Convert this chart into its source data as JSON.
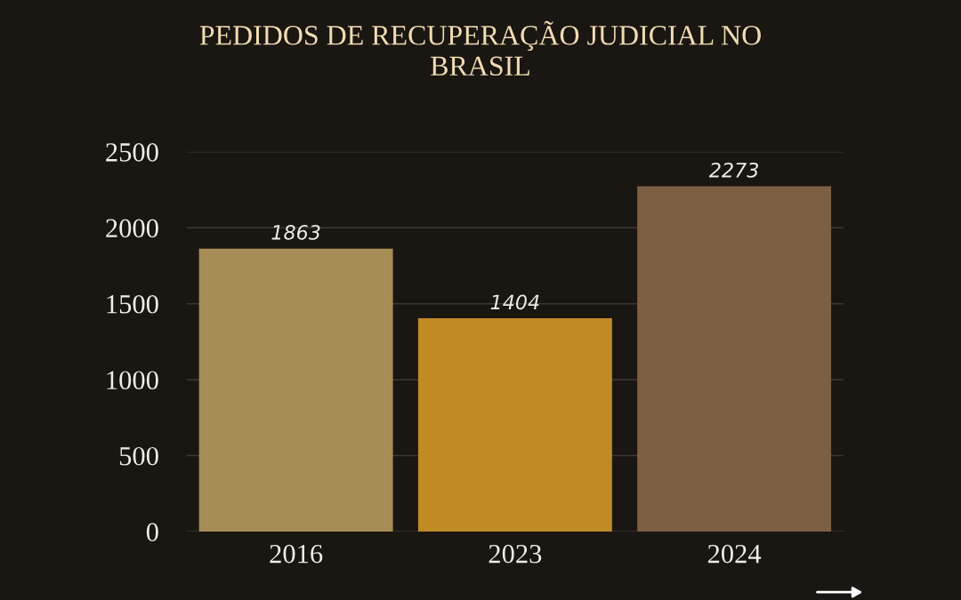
{
  "chart_data": {
    "type": "bar",
    "title": "PEDIDOS DE RECUPERAÇÃO JUDICIAL NO BRASIL",
    "categories": [
      "2016",
      "2023",
      "2024"
    ],
    "values": [
      1863,
      1404,
      2273
    ],
    "colors": [
      "#a68d55",
      "#c08a25",
      "#7d5f42"
    ],
    "ylim": [
      0,
      2500
    ],
    "yticks": [
      0,
      500,
      1000,
      1500,
      2000,
      2500
    ],
    "grid": "y",
    "data_labels": true
  }
}
